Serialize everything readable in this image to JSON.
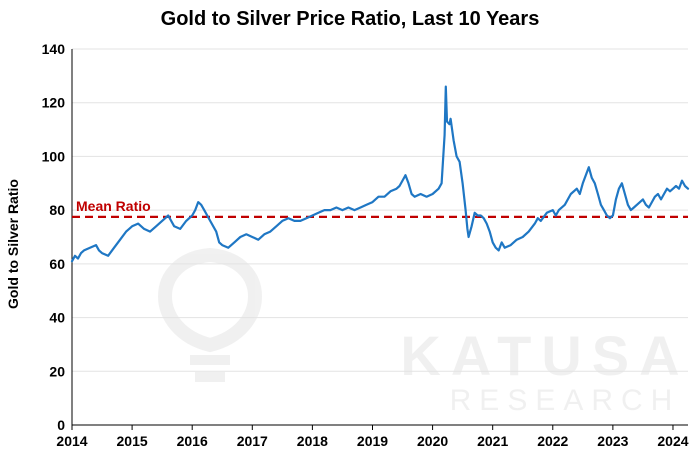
{
  "chart_data": {
    "type": "line",
    "title": "Gold to Silver Price Ratio, Last 10 Years",
    "xlabel": "",
    "ylabel": "Gold to Silver Ratio",
    "xlim": [
      2014.0,
      2024.25
    ],
    "ylim": [
      0,
      140
    ],
    "grid": true,
    "x_ticks": [
      "2014",
      "2015",
      "2016",
      "2017",
      "2018",
      "2019",
      "2020",
      "2021",
      "2022",
      "2023",
      "2024"
    ],
    "y_ticks": [
      "0",
      "20",
      "40",
      "60",
      "80",
      "100",
      "120",
      "140"
    ],
    "series": [
      {
        "color": "#1f77c4",
        "points": [
          [
            2014.0,
            61
          ],
          [
            2014.05,
            63
          ],
          [
            2014.1,
            62
          ],
          [
            2014.15,
            64
          ],
          [
            2014.2,
            65
          ],
          [
            2014.3,
            66
          ],
          [
            2014.4,
            67
          ],
          [
            2014.45,
            65
          ],
          [
            2014.5,
            64
          ],
          [
            2014.6,
            63
          ],
          [
            2014.7,
            66
          ],
          [
            2014.8,
            69
          ],
          [
            2014.9,
            72
          ],
          [
            2015.0,
            74
          ],
          [
            2015.1,
            75
          ],
          [
            2015.2,
            73
          ],
          [
            2015.3,
            72
          ],
          [
            2015.4,
            74
          ],
          [
            2015.5,
            76
          ],
          [
            2015.6,
            78
          ],
          [
            2015.7,
            74
          ],
          [
            2015.8,
            73
          ],
          [
            2015.9,
            76
          ],
          [
            2016.0,
            78
          ],
          [
            2016.05,
            80
          ],
          [
            2016.1,
            83
          ],
          [
            2016.15,
            82
          ],
          [
            2016.2,
            80
          ],
          [
            2016.3,
            76
          ],
          [
            2016.4,
            72
          ],
          [
            2016.45,
            68
          ],
          [
            2016.5,
            67
          ],
          [
            2016.6,
            66
          ],
          [
            2016.7,
            68
          ],
          [
            2016.8,
            70
          ],
          [
            2016.9,
            71
          ],
          [
            2017.0,
            70
          ],
          [
            2017.1,
            69
          ],
          [
            2017.2,
            71
          ],
          [
            2017.3,
            72
          ],
          [
            2017.4,
            74
          ],
          [
            2017.5,
            76
          ],
          [
            2017.6,
            77
          ],
          [
            2017.7,
            76
          ],
          [
            2017.8,
            76
          ],
          [
            2017.9,
            77
          ],
          [
            2018.0,
            78
          ],
          [
            2018.1,
            79
          ],
          [
            2018.2,
            80
          ],
          [
            2018.3,
            80
          ],
          [
            2018.4,
            81
          ],
          [
            2018.5,
            80
          ],
          [
            2018.6,
            81
          ],
          [
            2018.7,
            80
          ],
          [
            2018.8,
            81
          ],
          [
            2018.9,
            82
          ],
          [
            2019.0,
            83
          ],
          [
            2019.1,
            85
          ],
          [
            2019.2,
            85
          ],
          [
            2019.3,
            87
          ],
          [
            2019.4,
            88
          ],
          [
            2019.45,
            89
          ],
          [
            2019.5,
            91
          ],
          [
            2019.55,
            93
          ],
          [
            2019.6,
            90
          ],
          [
            2019.65,
            86
          ],
          [
            2019.7,
            85
          ],
          [
            2019.8,
            86
          ],
          [
            2019.9,
            85
          ],
          [
            2020.0,
            86
          ],
          [
            2020.1,
            88
          ],
          [
            2020.15,
            90
          ],
          [
            2020.2,
            108
          ],
          [
            2020.22,
            126
          ],
          [
            2020.24,
            113
          ],
          [
            2020.28,
            112
          ],
          [
            2020.3,
            114
          ],
          [
            2020.35,
            106
          ],
          [
            2020.4,
            100
          ],
          [
            2020.45,
            98
          ],
          [
            2020.5,
            90
          ],
          [
            2020.55,
            80
          ],
          [
            2020.58,
            73
          ],
          [
            2020.6,
            70
          ],
          [
            2020.65,
            74
          ],
          [
            2020.7,
            79
          ],
          [
            2020.75,
            78
          ],
          [
            2020.8,
            78
          ],
          [
            2020.85,
            77
          ],
          [
            2020.9,
            75
          ],
          [
            2020.95,
            72
          ],
          [
            2021.0,
            68
          ],
          [
            2021.05,
            66
          ],
          [
            2021.1,
            65
          ],
          [
            2021.15,
            68
          ],
          [
            2021.2,
            66
          ],
          [
            2021.3,
            67
          ],
          [
            2021.4,
            69
          ],
          [
            2021.5,
            70
          ],
          [
            2021.6,
            72
          ],
          [
            2021.7,
            75
          ],
          [
            2021.75,
            77
          ],
          [
            2021.8,
            76
          ],
          [
            2021.9,
            79
          ],
          [
            2022.0,
            80
          ],
          [
            2022.05,
            78
          ],
          [
            2022.1,
            80
          ],
          [
            2022.2,
            82
          ],
          [
            2022.3,
            86
          ],
          [
            2022.4,
            88
          ],
          [
            2022.45,
            86
          ],
          [
            2022.5,
            90
          ],
          [
            2022.55,
            93
          ],
          [
            2022.6,
            96
          ],
          [
            2022.65,
            92
          ],
          [
            2022.7,
            90
          ],
          [
            2022.75,
            86
          ],
          [
            2022.8,
            82
          ],
          [
            2022.85,
            80
          ],
          [
            2022.9,
            78
          ],
          [
            2022.95,
            77
          ],
          [
            2023.0,
            78
          ],
          [
            2023.05,
            84
          ],
          [
            2023.1,
            88
          ],
          [
            2023.15,
            90
          ],
          [
            2023.2,
            86
          ],
          [
            2023.25,
            82
          ],
          [
            2023.3,
            80
          ],
          [
            2023.35,
            81
          ],
          [
            2023.4,
            82
          ],
          [
            2023.5,
            84
          ],
          [
            2023.55,
            82
          ],
          [
            2023.6,
            81
          ],
          [
            2023.65,
            83
          ],
          [
            2023.7,
            85
          ],
          [
            2023.75,
            86
          ],
          [
            2023.8,
            84
          ],
          [
            2023.85,
            86
          ],
          [
            2023.9,
            88
          ],
          [
            2023.95,
            87
          ],
          [
            2024.0,
            88
          ],
          [
            2024.05,
            89
          ],
          [
            2024.1,
            88
          ],
          [
            2024.15,
            91
          ],
          [
            2024.2,
            89
          ],
          [
            2024.25,
            88
          ]
        ]
      }
    ],
    "reference_line": {
      "label": "Mean Ratio",
      "value": 77.5,
      "color": "#c00000",
      "style": "dashed"
    },
    "watermark": {
      "line1": "KATUSA",
      "line2": "RESEARCH"
    }
  }
}
